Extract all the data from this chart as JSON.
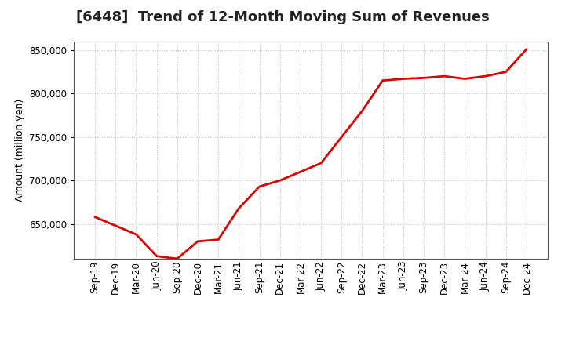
{
  "title": "[6448]  Trend of 12-Month Moving Sum of Revenues",
  "ylabel": "Amount (million yen)",
  "line_color": "#dd0000",
  "background_color": "#ffffff",
  "grid_color": "#bbbbbb",
  "x_labels": [
    "Sep-19",
    "Dec-19",
    "Mar-20",
    "Jun-20",
    "Sep-20",
    "Dec-20",
    "Mar-21",
    "Jun-21",
    "Sep-21",
    "Dec-21",
    "Mar-22",
    "Jun-22",
    "Sep-22",
    "Dec-22",
    "Mar-23",
    "Jun-23",
    "Sep-23",
    "Dec-23",
    "Mar-24",
    "Jun-24",
    "Sep-24",
    "Dec-24"
  ],
  "y_values": [
    658000,
    648000,
    638000,
    613000,
    610000,
    630000,
    632000,
    668000,
    693000,
    700000,
    710000,
    720000,
    750000,
    780000,
    815000,
    817000,
    818000,
    820000,
    817000,
    820000,
    825000,
    851000
  ],
  "ylim_min": 610000,
  "ylim_max": 860000,
  "yticks": [
    650000,
    700000,
    750000,
    800000,
    850000
  ],
  "title_fontsize": 13,
  "label_fontsize": 9,
  "tick_fontsize": 8.5
}
